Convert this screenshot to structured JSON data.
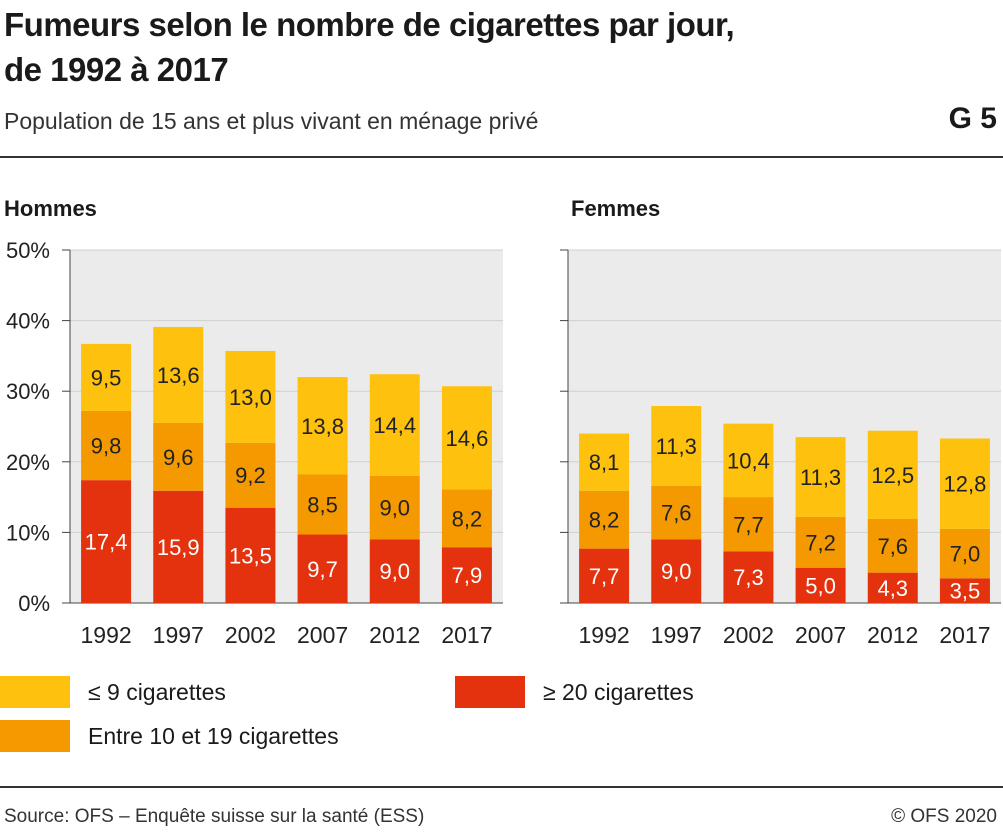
{
  "header": {
    "title_line1": "Fumeurs selon le nombre de cigarettes par jour,",
    "title_line2": "de 1992 à 2017",
    "subtitle": "Population de 15 ans et plus vivant en ménage privé",
    "code": "G 5"
  },
  "colors": {
    "le9": "#FEC10D",
    "10to19": "#F49A00",
    "ge20": "#E4310E",
    "plot_bg": "#EBEBEB",
    "grid": "#CFCFCF"
  },
  "chart_data": [
    {
      "type": "bar",
      "stacked": true,
      "title": "Hommes",
      "categories": [
        "1992",
        "1997",
        "2002",
        "2007",
        "2012",
        "2017"
      ],
      "ylim": [
        0,
        50
      ],
      "yticks": [
        "0%",
        "10%",
        "20%",
        "30%",
        "40%",
        "50%"
      ],
      "grid": true,
      "series": [
        {
          "name": "≥ 20 cigarettes",
          "values": [
            17.4,
            15.9,
            13.5,
            9.7,
            9.0,
            7.9
          ],
          "labels": [
            "17,4",
            "15,9",
            "13,5",
            "9,7",
            "9,0",
            "7,9"
          ]
        },
        {
          "name": "Entre 10 et 19 cigarettes",
          "values": [
            9.8,
            9.6,
            9.2,
            8.5,
            9.0,
            8.2
          ],
          "labels": [
            "9,8",
            "9,6",
            "9,2",
            "8,5",
            "9,0",
            "8,2"
          ]
        },
        {
          "name": "≤ 9 cigarettes",
          "values": [
            9.5,
            13.6,
            13.0,
            13.8,
            14.4,
            14.6
          ],
          "labels": [
            "9,5",
            "13,6",
            "13,0",
            "13,8",
            "14,4",
            "14,6"
          ]
        }
      ]
    },
    {
      "type": "bar",
      "stacked": true,
      "title": "Femmes",
      "categories": [
        "1992",
        "1997",
        "2002",
        "2007",
        "2012",
        "2017"
      ],
      "ylim": [
        0,
        50
      ],
      "grid": true,
      "series": [
        {
          "name": "≥ 20 cigarettes",
          "values": [
            7.7,
            9.0,
            7.3,
            5.0,
            4.3,
            3.5
          ],
          "labels": [
            "7,7",
            "9,0",
            "7,3",
            "5,0",
            "4,3",
            "3,5"
          ]
        },
        {
          "name": "Entre 10 et 19 cigarettes",
          "values": [
            8.2,
            7.6,
            7.7,
            7.2,
            7.6,
            7.0
          ],
          "labels": [
            "8,2",
            "7,6",
            "7,7",
            "7,2",
            "7,6",
            "7,0"
          ]
        },
        {
          "name": "≤ 9 cigarettes",
          "values": [
            8.1,
            11.3,
            10.4,
            11.3,
            12.5,
            12.8
          ],
          "labels": [
            "8,1",
            "11,3",
            "10,4",
            "11,3",
            "12,5",
            "12,8"
          ]
        }
      ]
    }
  ],
  "legend": {
    "le9": "≤ 9 cigarettes",
    "10to19": "Entre 10 et 19 cigarettes",
    "ge20": "≥ 20 cigarettes"
  },
  "footer": {
    "source": "Source: OFS – Enquête suisse sur la santé (ESS)",
    "copyright": "© OFS 2020"
  }
}
